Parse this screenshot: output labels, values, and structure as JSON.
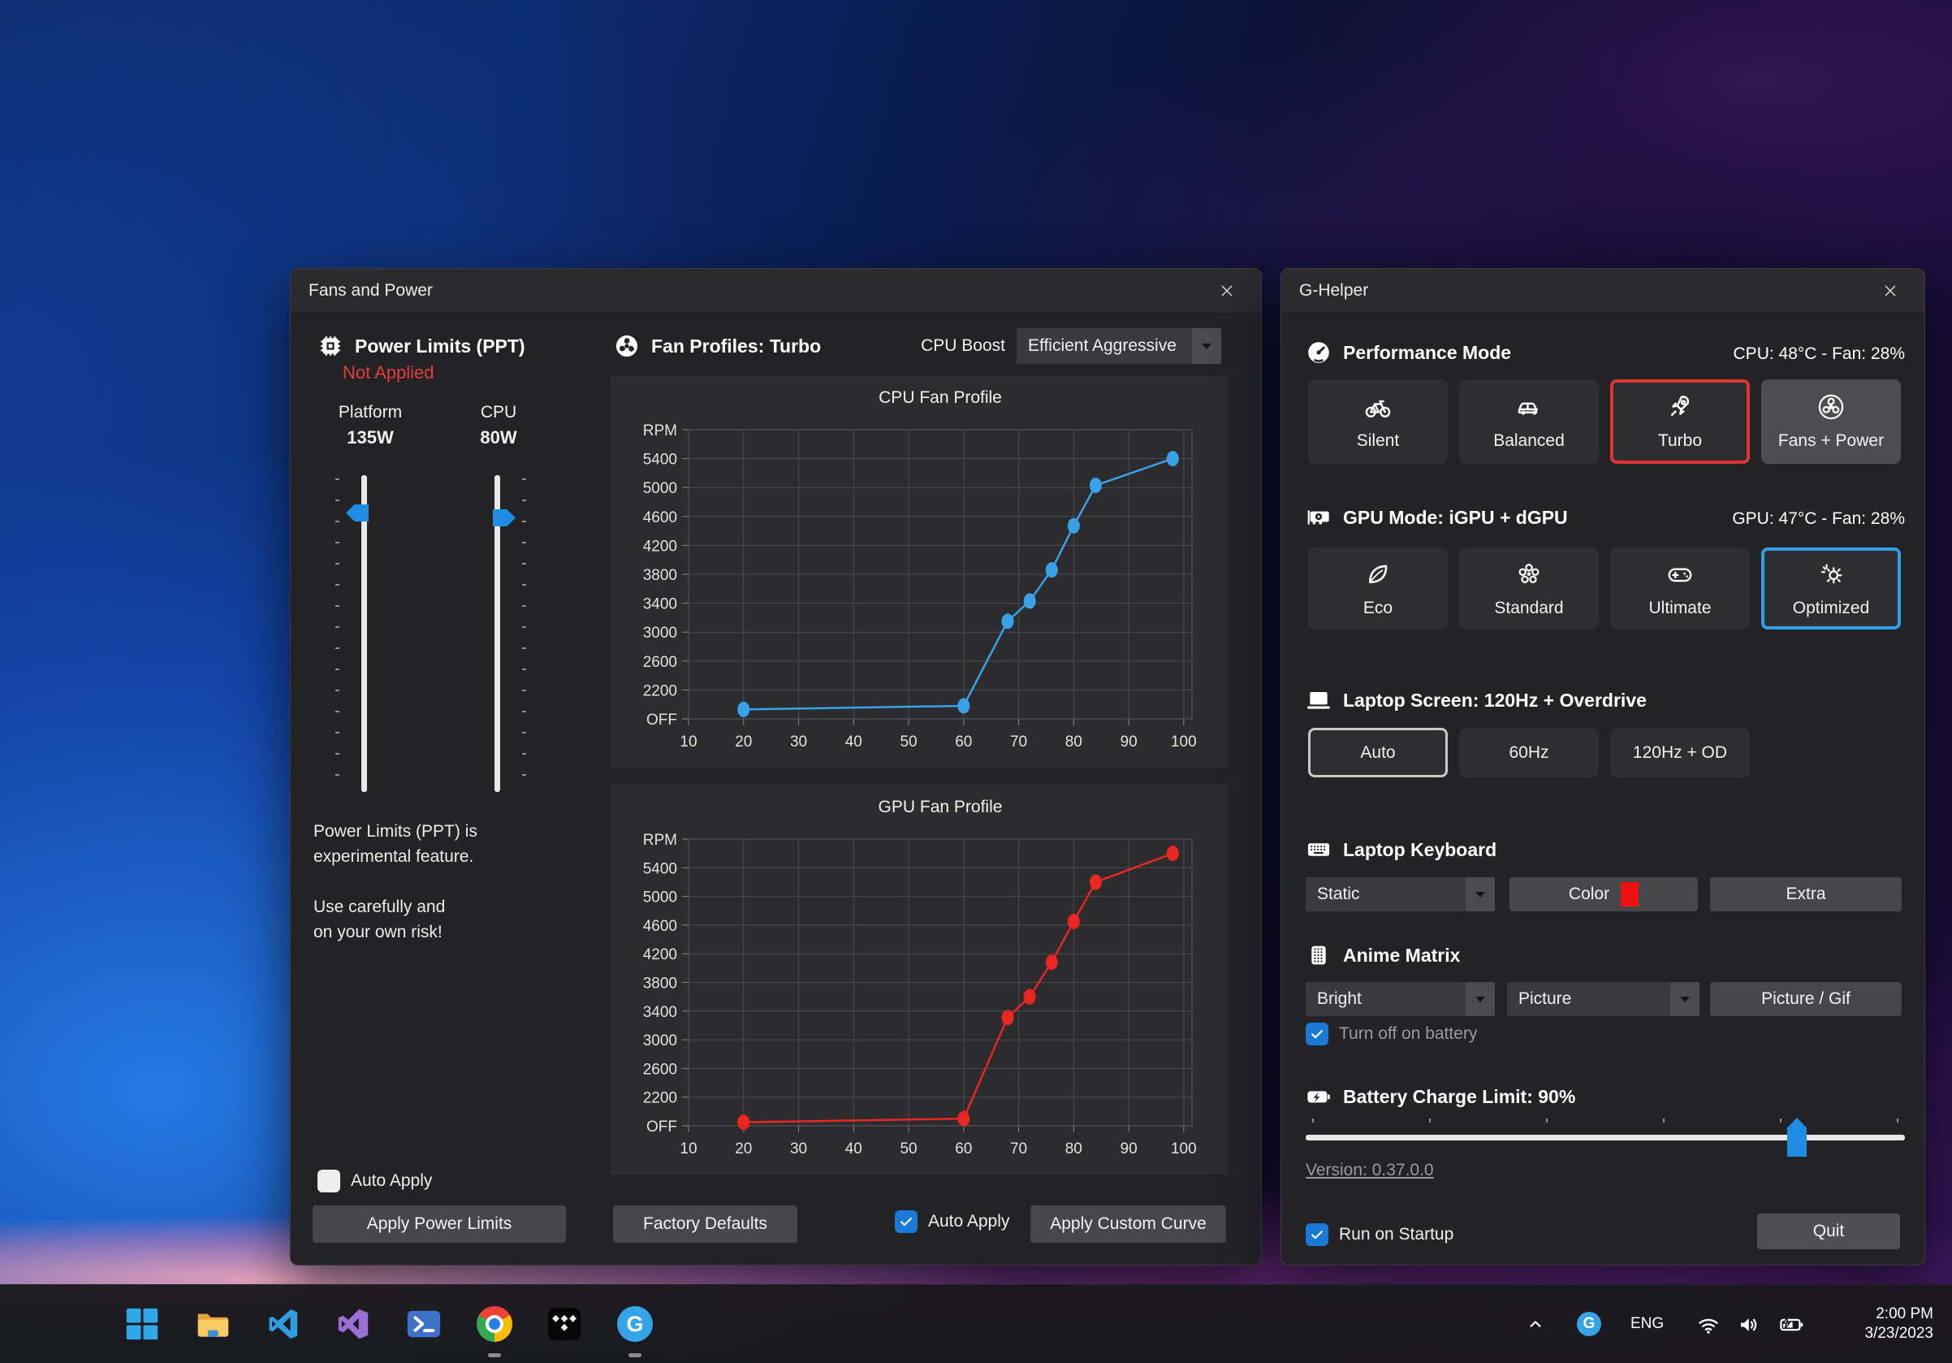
{
  "fans_window": {
    "title": "Fans and Power",
    "power_limits": {
      "heading": "Power Limits (PPT)",
      "status": "Not Applied",
      "platform_label": "Platform",
      "platform_value": "135W",
      "cpu_label": "CPU",
      "cpu_value": "80W",
      "warning_line1": "Power Limits (PPT) is",
      "warning_line2": "experimental feature.",
      "warning_line3": "Use carefully and",
      "warning_line4": "on your own risk!",
      "auto_apply_label": "Auto Apply",
      "apply_button": "Apply Power Limits"
    },
    "fan_profiles": {
      "heading": "Fan Profiles: Turbo",
      "cpu_boost_label": "CPU Boost",
      "cpu_boost_value": "Efficient Aggressive",
      "factory_defaults_button": "Factory Defaults",
      "auto_apply_label": "Auto Apply",
      "apply_curve_button": "Apply Custom Curve"
    }
  },
  "chart_data": [
    {
      "type": "line",
      "title": "CPU Fan Profile",
      "series_color": "#38a2e8",
      "x": [
        20,
        60,
        68,
        72,
        76,
        80,
        84,
        98
      ],
      "y": [
        1930,
        1980,
        3150,
        3430,
        3860,
        4470,
        5030,
        5400
      ],
      "x_ticks": [
        10,
        20,
        30,
        40,
        50,
        60,
        70,
        80,
        90,
        100
      ],
      "xlim": [
        10,
        101.5
      ],
      "ylim": [
        1800,
        5800
      ],
      "grid": true,
      "y_gridlines": [
        {
          "v": 1800,
          "label": "OFF"
        },
        {
          "v": 2200,
          "label": "2200"
        },
        {
          "v": 2600,
          "label": "2600"
        },
        {
          "v": 3000,
          "label": "3000"
        },
        {
          "v": 3400,
          "label": "3400"
        },
        {
          "v": 3800,
          "label": "3800"
        },
        {
          "v": 4200,
          "label": "4200"
        },
        {
          "v": 4600,
          "label": "4600"
        },
        {
          "v": 5000,
          "label": "5000"
        },
        {
          "v": 5400,
          "label": "5400"
        },
        {
          "v": 5800,
          "label": "RPM"
        }
      ],
      "note": "fan RPM vs temperature °C, editable curve points"
    },
    {
      "type": "line",
      "title": "GPU Fan Profile",
      "series_color": "#e92621",
      "x": [
        20,
        60,
        68,
        72,
        76,
        80,
        84,
        98
      ],
      "y": [
        1850,
        1900,
        3310,
        3600,
        4080,
        4650,
        5200,
        5600
      ],
      "x_ticks": [
        10,
        20,
        30,
        40,
        50,
        60,
        70,
        80,
        90,
        100
      ],
      "xlim": [
        10,
        101.5
      ],
      "ylim": [
        1800,
        5800
      ],
      "grid": true,
      "y_gridlines": [
        {
          "v": 1800,
          "label": "OFF"
        },
        {
          "v": 2200,
          "label": "2200"
        },
        {
          "v": 2600,
          "label": "2600"
        },
        {
          "v": 3000,
          "label": "3000"
        },
        {
          "v": 3400,
          "label": "3400"
        },
        {
          "v": 3800,
          "label": "3800"
        },
        {
          "v": 4200,
          "label": "4200"
        },
        {
          "v": 4600,
          "label": "4600"
        },
        {
          "v": 5000,
          "label": "5000"
        },
        {
          "v": 5400,
          "label": "5400"
        },
        {
          "v": 5800,
          "label": "RPM"
        }
      ],
      "note": "fan RPM vs temperature °C, editable curve points"
    }
  ],
  "ghelper_window": {
    "title": "G-Helper",
    "performance": {
      "heading": "Performance Mode",
      "stat": "CPU: 48°C  -   Fan: 28%",
      "modes": [
        {
          "label": "Silent",
          "icon": "bicycle-icon"
        },
        {
          "label": "Balanced",
          "icon": "car-icon"
        },
        {
          "label": "Turbo",
          "icon": "rocket-icon",
          "selected": true
        },
        {
          "label": "Fans + Power",
          "icon": "fan-icon"
        }
      ]
    },
    "gpu": {
      "heading": "GPU Mode: iGPU + dGPU",
      "stat": "GPU: 47°C  -   Fan: 28%",
      "modes": [
        {
          "label": "Eco",
          "icon": "leaf-icon"
        },
        {
          "label": "Standard",
          "icon": "flower-icon"
        },
        {
          "label": "Ultimate",
          "icon": "gamepad-icon"
        },
        {
          "label": "Optimized",
          "icon": "sparkle-gear-icon",
          "selected": true
        }
      ]
    },
    "screen": {
      "heading": "Laptop Screen: 120Hz + Overdrive",
      "options": [
        {
          "label": "Auto",
          "selected": true
        },
        {
          "label": "60Hz"
        },
        {
          "label": "120Hz + OD"
        }
      ]
    },
    "keyboard": {
      "heading": "Laptop Keyboard",
      "mode_value": "Static",
      "color_label": "Color",
      "extra_button": "Extra"
    },
    "anime": {
      "heading": "Anime Matrix",
      "brightness_value": "Bright",
      "mode_value": "Picture",
      "picture_gif_button": "Picture / Gif",
      "battery_checkbox_label": "Turn off on battery"
    },
    "battery": {
      "heading": "Battery Charge Limit: 90%",
      "limit_percent": 90
    },
    "version_link": "Version: 0.37.0.0",
    "run_on_startup_label": "Run on Startup",
    "quit_button": "Quit"
  },
  "taskbar": {
    "apps": [
      {
        "icon": "windows-start-icon"
      },
      {
        "icon": "file-explorer-icon"
      },
      {
        "icon": "vscode-icon"
      },
      {
        "icon": "visual-studio-icon"
      },
      {
        "icon": "powershell-icon"
      },
      {
        "icon": "chrome-icon",
        "running": true
      },
      {
        "icon": "tidal-icon"
      },
      {
        "icon": "g-helper-icon",
        "running": true
      }
    ],
    "tray": {
      "language": "ENG",
      "time": "2:00 PM",
      "date": "3/23/2023",
      "icons": [
        "tray-expand-chevron-icon",
        "g-helper-tray-icon",
        "wifi-icon",
        "volume-icon",
        "battery-charging-icon"
      ]
    }
  },
  "colors": {
    "selected_red_border": "#e03434",
    "selected_blue_border": "#2f9fe8",
    "selected_gray_border": "#c9c9c9",
    "checkbox_blue": "#1b79d6",
    "keyboard_color_swatch": "#ee1111",
    "cpu_series": "#38a2e8",
    "gpu_series": "#e92621",
    "not_applied_red": "#e23d3d",
    "slider_accent": "#1e8de2"
  }
}
